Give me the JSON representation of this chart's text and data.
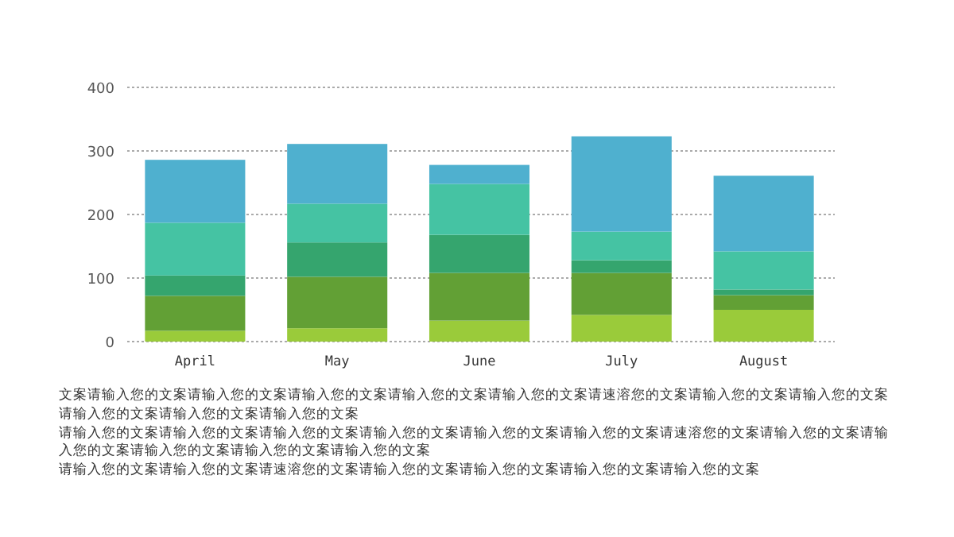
{
  "chart_data": {
    "type": "bar",
    "stacked": true,
    "categories": [
      "April",
      "May",
      "June",
      "July",
      "August"
    ],
    "series": [
      {
        "color": "#9acb3a",
        "values": [
          17,
          21,
          33,
          42,
          50
        ]
      },
      {
        "color": "#62a035",
        "values": [
          55,
          81,
          75,
          66,
          23
        ]
      },
      {
        "color": "#35a56e",
        "values": [
          32,
          54,
          60,
          20,
          9
        ]
      },
      {
        "color": "#45c3a3",
        "values": [
          83,
          61,
          80,
          45,
          60
        ]
      },
      {
        "color": "#4fb0cf",
        "values": [
          99,
          94,
          30,
          150,
          119
        ]
      }
    ],
    "ylim": [
      0,
      400
    ],
    "yticks": [
      0,
      100,
      200,
      300,
      400
    ],
    "grid": "y",
    "annotations": [
      "文案请输入您的文案请输入您的文案请输入您的文案请输入您的文案请输入您的文案请速溶您的文案请输入您的文案请输入您的文案请输入您的文案请输入您的文案请输入您的文案",
      "请输入您的文案请输入您的文案请输入您的文案请输入您的文案请输入您的文案请输入您的文案请速溶您的文案请输入您的文案请输入您的文案请输入您的文案请输入您的文案请输入您的文案",
      "请输入您的文案请输入您的文案请速溶您的文案请输入您的文案请输入您的文案请输入您的文案请输入您的文案"
    ]
  }
}
